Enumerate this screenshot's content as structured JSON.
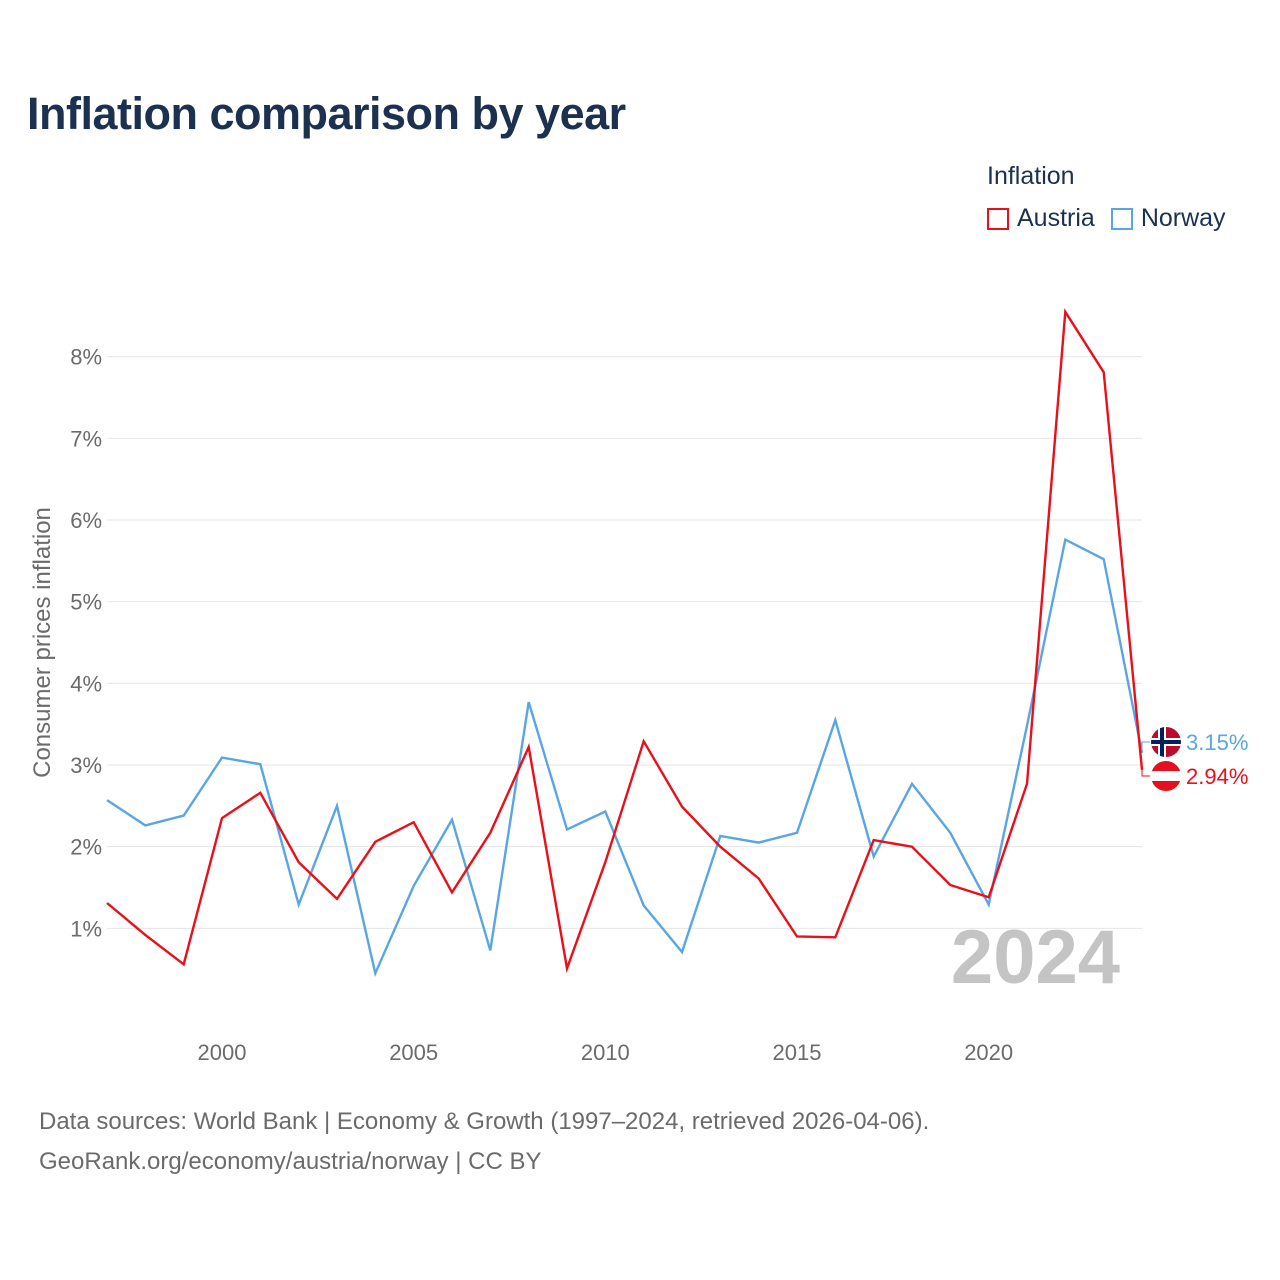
{
  "title": "Inflation comparison by year",
  "legend": {
    "title": "Inflation",
    "items": [
      {
        "label": "Austria",
        "color": "#e8101a"
      },
      {
        "label": "Norway",
        "color": "#5aa5e4"
      }
    ]
  },
  "footer": {
    "line1": "Data sources: World Bank | Economy & Growth (1997–2024, retrieved 2026-04-06).",
    "line2": "GeoRank.org/economy/austria/norway | CC BY"
  },
  "chart_data": {
    "type": "line",
    "title": "Inflation comparison by year",
    "xlabel": "",
    "ylabel": "Consumer prices inflation",
    "x": [
      1997,
      1998,
      1999,
      2000,
      2001,
      2002,
      2003,
      2004,
      2005,
      2006,
      2007,
      2008,
      2009,
      2010,
      2011,
      2012,
      2013,
      2014,
      2015,
      2016,
      2017,
      2018,
      2019,
      2020,
      2021,
      2022,
      2023,
      2024
    ],
    "xlim": [
      1997,
      2024
    ],
    "ylim": [
      0,
      9
    ],
    "x_ticks": [
      2000,
      2005,
      2010,
      2015,
      2020
    ],
    "x_tick_labels": [
      "2000",
      "2005",
      "2010",
      "2015",
      "2020"
    ],
    "y_ticks": [
      1,
      2,
      3,
      4,
      5,
      6,
      7,
      8
    ],
    "y_tick_labels": [
      "1%",
      "2%",
      "3%",
      "4%",
      "5%",
      "6%",
      "7%",
      "8%"
    ],
    "grid": true,
    "legend_position": "top-right",
    "watermark": "2024",
    "series": [
      {
        "name": "Austria",
        "color": "#e8101a",
        "end_label": "2.94%",
        "values": [
          1.31,
          0.92,
          0.56,
          2.35,
          2.66,
          1.81,
          1.36,
          2.06,
          2.3,
          1.44,
          2.17,
          3.22,
          0.51,
          1.81,
          3.29,
          2.49,
          2.0,
          1.61,
          0.9,
          0.89,
          2.08,
          2.0,
          1.53,
          1.38,
          2.77,
          8.55,
          7.81,
          2.94
        ]
      },
      {
        "name": "Norway",
        "color": "#5aa5e4",
        "end_label": "3.15%",
        "values": [
          2.57,
          2.26,
          2.38,
          3.09,
          3.01,
          1.29,
          2.5,
          0.45,
          1.52,
          2.33,
          0.73,
          3.77,
          2.21,
          2.43,
          1.28,
          0.71,
          2.13,
          2.05,
          2.17,
          3.55,
          1.88,
          2.77,
          2.17,
          1.29,
          3.48,
          5.76,
          5.52,
          3.15
        ]
      }
    ]
  }
}
